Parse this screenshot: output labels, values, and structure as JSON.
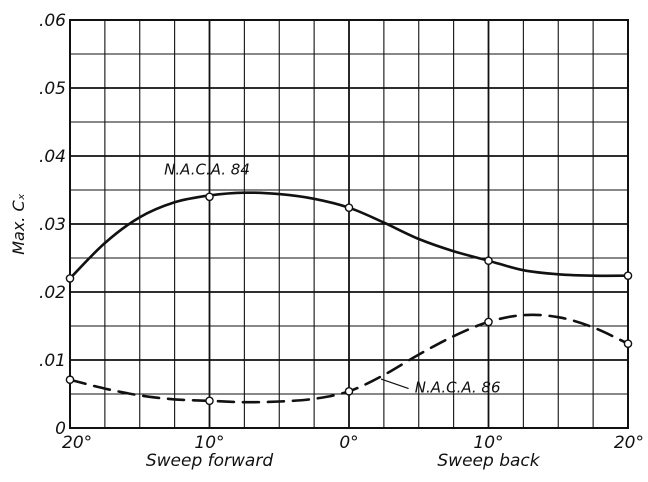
{
  "chart_data": {
    "type": "line",
    "title": "",
    "xlabel": "",
    "ylabel": "Max. Cₓ",
    "ylim": [
      0,
      0.06
    ],
    "xlim": [
      -20,
      20
    ],
    "x_direction": "sweep angle from 20° forward (left) to 20° back (right)",
    "y_ticks": [
      "0",
      ".01",
      ".02",
      ".03",
      ".04",
      ".05",
      ".06"
    ],
    "x_ticks": [
      "20°",
      "10°",
      "0°",
      "10°",
      "20°"
    ],
    "x_group_labels": [
      "Sweep forward",
      "Sweep back"
    ],
    "grid": true,
    "series": [
      {
        "name": "N.A.C.A. 84",
        "style": "solid",
        "x": [
          -20,
          -10,
          0,
          10,
          20
        ],
        "y": [
          0.022,
          0.034,
          0.0324,
          0.0246,
          0.0224
        ],
        "curve_x": [
          -20,
          -17.5,
          -15,
          -12.5,
          -10,
          -7.5,
          -5,
          -2.5,
          0,
          2.5,
          5,
          7.5,
          10,
          12.5,
          15,
          17.5,
          20
        ],
        "curve_y": [
          0.022,
          0.0272,
          0.031,
          0.0332,
          0.0342,
          0.0346,
          0.0344,
          0.0337,
          0.0324,
          0.0302,
          0.0278,
          0.026,
          0.0246,
          0.0232,
          0.0226,
          0.0224,
          0.0224
        ]
      },
      {
        "name": "N.A.C.A. 86",
        "style": "dashed",
        "x": [
          -20,
          -10,
          0,
          10,
          20
        ],
        "y": [
          0.0071,
          0.004,
          0.0054,
          0.0156,
          0.0124
        ],
        "curve_x": [
          -20,
          -17.5,
          -15,
          -12.5,
          -10,
          -7.5,
          -5,
          -2.5,
          0,
          2.5,
          5,
          7.5,
          10,
          12.5,
          15,
          17.5,
          20
        ],
        "curve_y": [
          0.0071,
          0.0058,
          0.0048,
          0.0042,
          0.004,
          0.0038,
          0.0039,
          0.0043,
          0.0054,
          0.0078,
          0.0108,
          0.0135,
          0.0156,
          0.0166,
          0.0163,
          0.0148,
          0.0124
        ]
      }
    ],
    "annotations": [
      {
        "text": "N.A.C.A. 84",
        "series": 0
      },
      {
        "text": "N.A.C.A. 86",
        "series": 1
      }
    ],
    "colors": {
      "line": "#111111",
      "grid": "#111111",
      "background": "#ffffff"
    }
  }
}
